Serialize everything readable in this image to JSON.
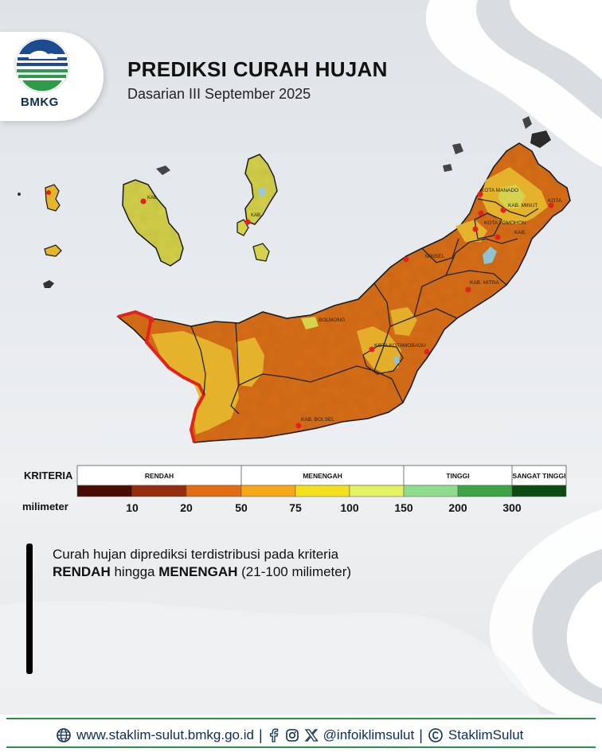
{
  "header": {
    "logo_text": "BMKG",
    "title": "PREDIKSI CURAH HUJAN",
    "subtitle": "Dasarian III September 2025"
  },
  "map": {
    "labels": {
      "kota_manado": "KOTA MANADO",
      "kota_bitung": "KOTA",
      "kab_minut": "KAB. MINUT",
      "kota_tomohon": "KOTA TOMOHON",
      "kab_minahasa": "KAB.",
      "kab_minsel": "MINSEL",
      "kab_mitra": "KAB. MITRA",
      "kab_bolmong": "BOLMONG",
      "kota_kotamobagu": "KOTA KOTAMOBAGU",
      "kab_bolsel": "KAB. BOLSEL",
      "kab_sangihe": "KAB.",
      "kab_sitaro": "KAB."
    },
    "colors": {
      "rendah_fill": "#d9701e",
      "menengah_fill": "#e5b62c",
      "menengah_light_fill": "#d6d24b",
      "coast_highlight": "#e0231c"
    }
  },
  "legend": {
    "kriteria_label": "KRITERIA",
    "milimeter_label": "milimeter",
    "categories": [
      {
        "name": "RENDAH",
        "color": "#7a1f0c"
      },
      {
        "name": "MENENGAH",
        "color": "#f3e01c"
      },
      {
        "name": "TINGGI",
        "color": "#4fb456"
      },
      {
        "name": "SANGAT TINGGI",
        "color": "#0c4a12"
      }
    ],
    "scale_colors": [
      "#4a0d05",
      "#952d0f",
      "#e06d12",
      "#f4a81a",
      "#f3e01c",
      "#e3f262",
      "#8fdc8c",
      "#3ea247",
      "#0c4a12"
    ],
    "scale_ticks": [
      "10",
      "20",
      "50",
      "75",
      "100",
      "150",
      "200",
      "300"
    ]
  },
  "description": {
    "line1": "Curah hujan diprediksi terdistribusi pada kriteria",
    "bold1": "RENDAH",
    "mid": " hingga ",
    "bold2": "MENENGAH",
    "tail": " (21-100 milimeter)"
  },
  "footer": {
    "website": "www.staklim-sulut.bmkg.go.id",
    "social_handle": "@infoiklimsulut",
    "channel": "StaklimSulut",
    "icons": [
      "globe-icon",
      "facebook-icon",
      "instagram-icon",
      "x-icon",
      "copyright-icon"
    ]
  }
}
